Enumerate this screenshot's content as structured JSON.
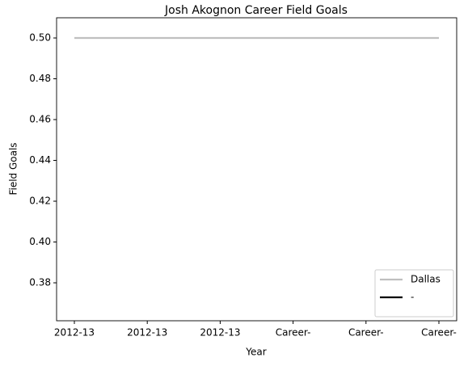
{
  "chart_data": {
    "type": "line",
    "title": "Josh Akognon Career Field Goals",
    "x_label": "Year",
    "y_label": "Field Goals",
    "categories": [
      "2012-13",
      "2012-13",
      "2012-13",
      "Career-",
      "Career-",
      "Career-"
    ],
    "series": [
      {
        "name": "Dallas",
        "color": "#bfbfbf",
        "values": [
          0.5,
          0.5,
          0.5,
          0.5,
          0.5,
          0.5
        ]
      },
      {
        "name": "-",
        "color": "#000000",
        "values": [
          null,
          null,
          null,
          null,
          null,
          null
        ]
      }
    ],
    "ylim": [
      0.3614,
      0.5099
    ],
    "yticks": [
      0.38,
      {
        "value": 0.4,
        "label": "0.40"
      },
      0.42,
      0.44,
      0.46,
      0.48,
      {
        "value": 0.5,
        "label": "0.50"
      }
    ],
    "legend": "lower right",
    "grid": false
  }
}
